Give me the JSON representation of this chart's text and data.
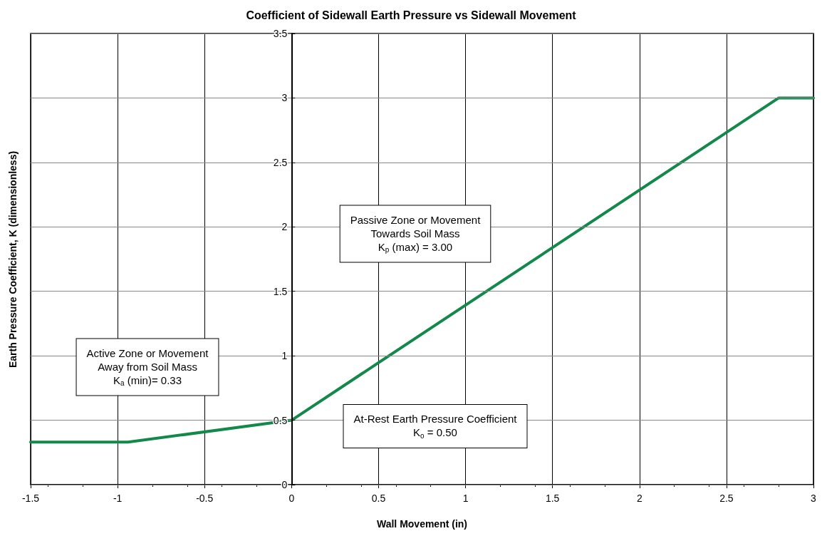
{
  "chart_data": {
    "type": "line",
    "title": "Coefficient of Sidewall Earth Pressure vs Sidewall Movement",
    "xlabel": "Wall Movement (in)",
    "ylabel": "Earth Pressure Coefficient, K (dimensionless)",
    "x": [
      -1.5,
      -0.94,
      0,
      2.8,
      3
    ],
    "series": [
      {
        "color": "#12884a",
        "values": [
          0.33,
          0.33,
          0.5,
          3.0,
          3.0
        ]
      }
    ],
    "xlim": [
      -1.5,
      3
    ],
    "xticks": [
      -1.5,
      -1,
      -0.5,
      0,
      0.5,
      1,
      1.5,
      2,
      2.5,
      3
    ],
    "ylim": [
      0,
      3.5
    ],
    "yticks": [
      0,
      0.5,
      1,
      1.5,
      2,
      2.5,
      3,
      3.5
    ],
    "grid": true,
    "marker": "none",
    "line_style": "solid",
    "annotations": [
      "Active Zone or Movement\nAway from Soil Mass\nK$_{a}$ (min)= 0.33",
      "Passive Zone or Movement\nTowards Soil Mass\nK$_{p}$ (max) = 3.00",
      "At-Rest Earth Pressure Coefficient\nK$_{o}$ = 0.50"
    ]
  }
}
